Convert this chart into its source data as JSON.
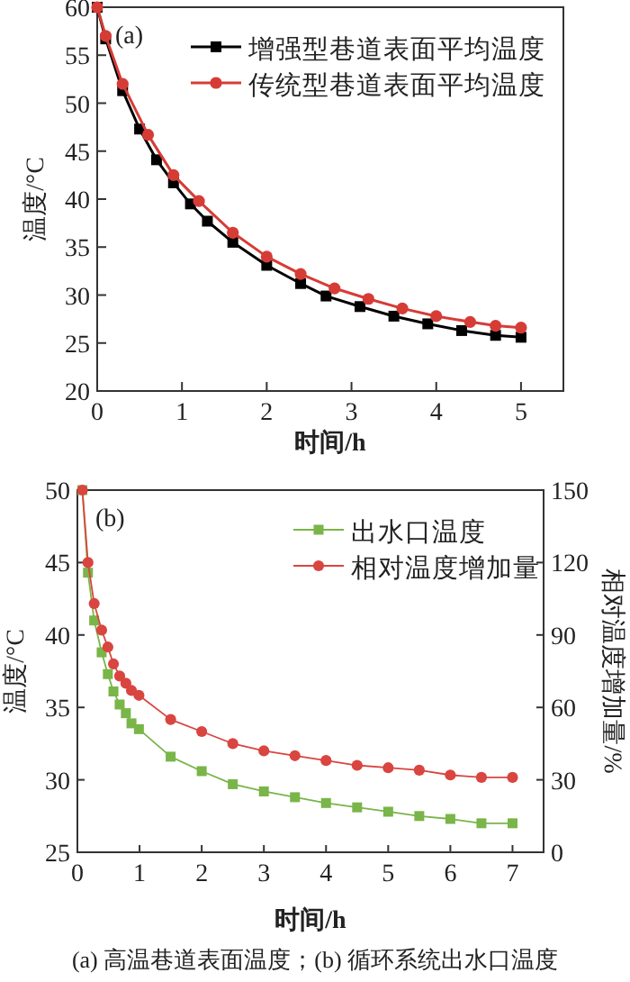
{
  "chart_data": [
    {
      "type": "line",
      "xlabel": "时间/h",
      "ylabel": "温度/°C",
      "annotations": [
        "(a)"
      ],
      "xlim": [
        0,
        5.5
      ],
      "ylim": [
        20,
        60
      ],
      "xticks": [
        0,
        1,
        2,
        3,
        4,
        5
      ],
      "yticks": [
        20,
        25,
        30,
        35,
        40,
        45,
        50,
        55,
        60
      ],
      "legend": "top right",
      "grid": false,
      "series": [
        {
          "name": "增强型巷道表面平均温度",
          "color": "#000000",
          "marker": "square",
          "x": [
            0,
            0.1,
            0.3,
            0.5,
            0.7,
            0.9,
            1.1,
            1.3,
            1.6,
            2.0,
            2.4,
            2.7,
            3.1,
            3.5,
            3.9,
            4.3,
            4.7,
            5.0
          ],
          "values": [
            60,
            56.7,
            51.3,
            47.3,
            44.1,
            41.7,
            39.5,
            37.7,
            35.5,
            33.1,
            31.2,
            29.9,
            28.8,
            27.8,
            27.0,
            26.3,
            25.8,
            25.6
          ]
        },
        {
          "name": "传统型巷道表面平均温度",
          "color": "#d63c36",
          "marker": "circle",
          "x": [
            0,
            0.1,
            0.3,
            0.6,
            0.9,
            1.2,
            1.6,
            2.0,
            2.4,
            2.8,
            3.2,
            3.6,
            4.0,
            4.4,
            4.7,
            5.0
          ],
          "values": [
            60,
            57.0,
            52.0,
            46.7,
            42.5,
            39.8,
            36.5,
            34.0,
            32.2,
            30.7,
            29.6,
            28.6,
            27.8,
            27.2,
            26.8,
            26.6
          ]
        }
      ]
    },
    {
      "type": "line",
      "xlabel": "时间/h",
      "ylabel": "温度/°C",
      "y2label": "相对温度增加量/%",
      "annotations": [
        "(b)",
        "(a) 高温巷道表面温度；(b) 循环系统出水口温度"
      ],
      "xlim": [
        0,
        7.5
      ],
      "ylim": [
        25,
        50
      ],
      "y2lim": [
        0,
        150
      ],
      "xticks": [
        0,
        1,
        2,
        3,
        4,
        5,
        6,
        7
      ],
      "yticks": [
        25,
        30,
        35,
        40,
        45,
        50
      ],
      "y2ticks": [
        0,
        30,
        60,
        90,
        120,
        150
      ],
      "legend": "top right",
      "grid": false,
      "series": [
        {
          "name": "出水口温度",
          "color": "#79b548",
          "marker": "square",
          "x": [
            0.08,
            0.17,
            0.27,
            0.39,
            0.49,
            0.58,
            0.68,
            0.78,
            0.87,
            0.99,
            1.5,
            2.0,
            2.5,
            3.0,
            3.5,
            4.0,
            4.5,
            5.0,
            5.5,
            6.0,
            6.5,
            7.0
          ],
          "values": [
            50,
            44.3,
            41.0,
            38.8,
            37.3,
            36.1,
            35.2,
            34.6,
            33.9,
            33.5,
            31.6,
            30.6,
            29.7,
            29.2,
            28.8,
            28.4,
            28.1,
            27.8,
            27.5,
            27.3,
            27.0,
            27.0
          ]
        },
        {
          "name": "相对温度增加量",
          "color": "#d9453f",
          "marker": "circle",
          "axis": "y2",
          "x": [
            0.08,
            0.17,
            0.27,
            0.39,
            0.49,
            0.58,
            0.68,
            0.78,
            0.87,
            0.99,
            1.5,
            2.0,
            2.5,
            3.0,
            3.5,
            4.0,
            4.5,
            5.0,
            5.5,
            6.0,
            6.5,
            7.0
          ],
          "values": [
            150,
            120,
            103,
            92,
            85,
            78,
            73,
            70,
            67,
            65,
            55,
            50,
            45,
            42,
            40,
            38,
            36,
            35,
            34,
            32,
            31,
            31
          ]
        }
      ]
    }
  ]
}
